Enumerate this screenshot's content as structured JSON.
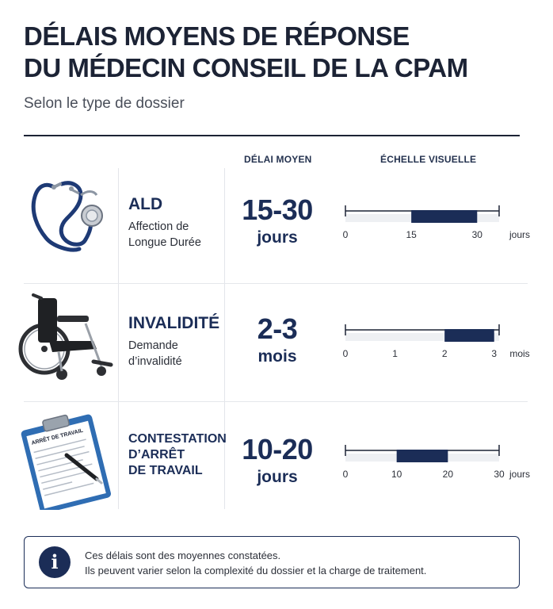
{
  "header": {
    "title_line1": "DÉLAIS MOYENS DE RÉPONSE",
    "title_line2": "DU MÉDECIN CONSEIL DE LA CPAM",
    "subtitle": "Selon le type de dossier"
  },
  "columns": {
    "delay": "DÉLAI MOYEN",
    "scale": "ÉCHELLE VISUELLE"
  },
  "colors": {
    "accent": "#1b2d57",
    "track": "#eef0f3"
  },
  "rows": [
    {
      "icon": "stethoscope-icon",
      "title": "ALD",
      "subtitle_line1": "Affection de",
      "subtitle_line2": "Longue Durée",
      "value": "15-30",
      "unit": "jours"
    },
    {
      "icon": "wheelchair-icon",
      "title": "INVALIDITÉ",
      "subtitle_line1": "Demande",
      "subtitle_line2": "d’invalidité",
      "value": "2-3",
      "unit": "mois"
    },
    {
      "icon": "clipboard-icon",
      "title_line1": "CONTESTATION",
      "title_line2": "D’ARRÊT",
      "title_line3": "DE TRAVAIL",
      "clipboard_text": "ARRÊT DE TRAVAIL",
      "value": "10-20",
      "unit": "jours"
    }
  ],
  "chart_data": [
    {
      "type": "bar",
      "category": "ALD",
      "range": [
        15,
        30
      ],
      "xlim": [
        0,
        35
      ],
      "ticks": [
        0,
        15,
        30
      ],
      "tick_labels": [
        "0",
        "15",
        "30"
      ],
      "unit_label": "jours"
    },
    {
      "type": "bar",
      "category": "INVALIDITÉ",
      "range": [
        2,
        3
      ],
      "xlim": [
        0,
        3.1
      ],
      "ticks": [
        0,
        1,
        2,
        3
      ],
      "tick_labels": [
        "0",
        "1",
        "2",
        "3"
      ],
      "unit_label": "mois"
    },
    {
      "type": "bar",
      "category": "CONTESTATION D’ARRÊT DE TRAVAIL",
      "range": [
        10,
        20
      ],
      "xlim": [
        0,
        30
      ],
      "ticks": [
        0,
        10,
        20,
        30
      ],
      "tick_labels": [
        "0",
        "10",
        "20",
        "30"
      ],
      "unit_label": "jours"
    }
  ],
  "footer": {
    "icon": "info-icon",
    "icon_glyph": "i",
    "line1": "Ces délais sont des moyennes constatées.",
    "line2": "Ils peuvent varier selon la complexité du dossier et la charge de traitement."
  }
}
